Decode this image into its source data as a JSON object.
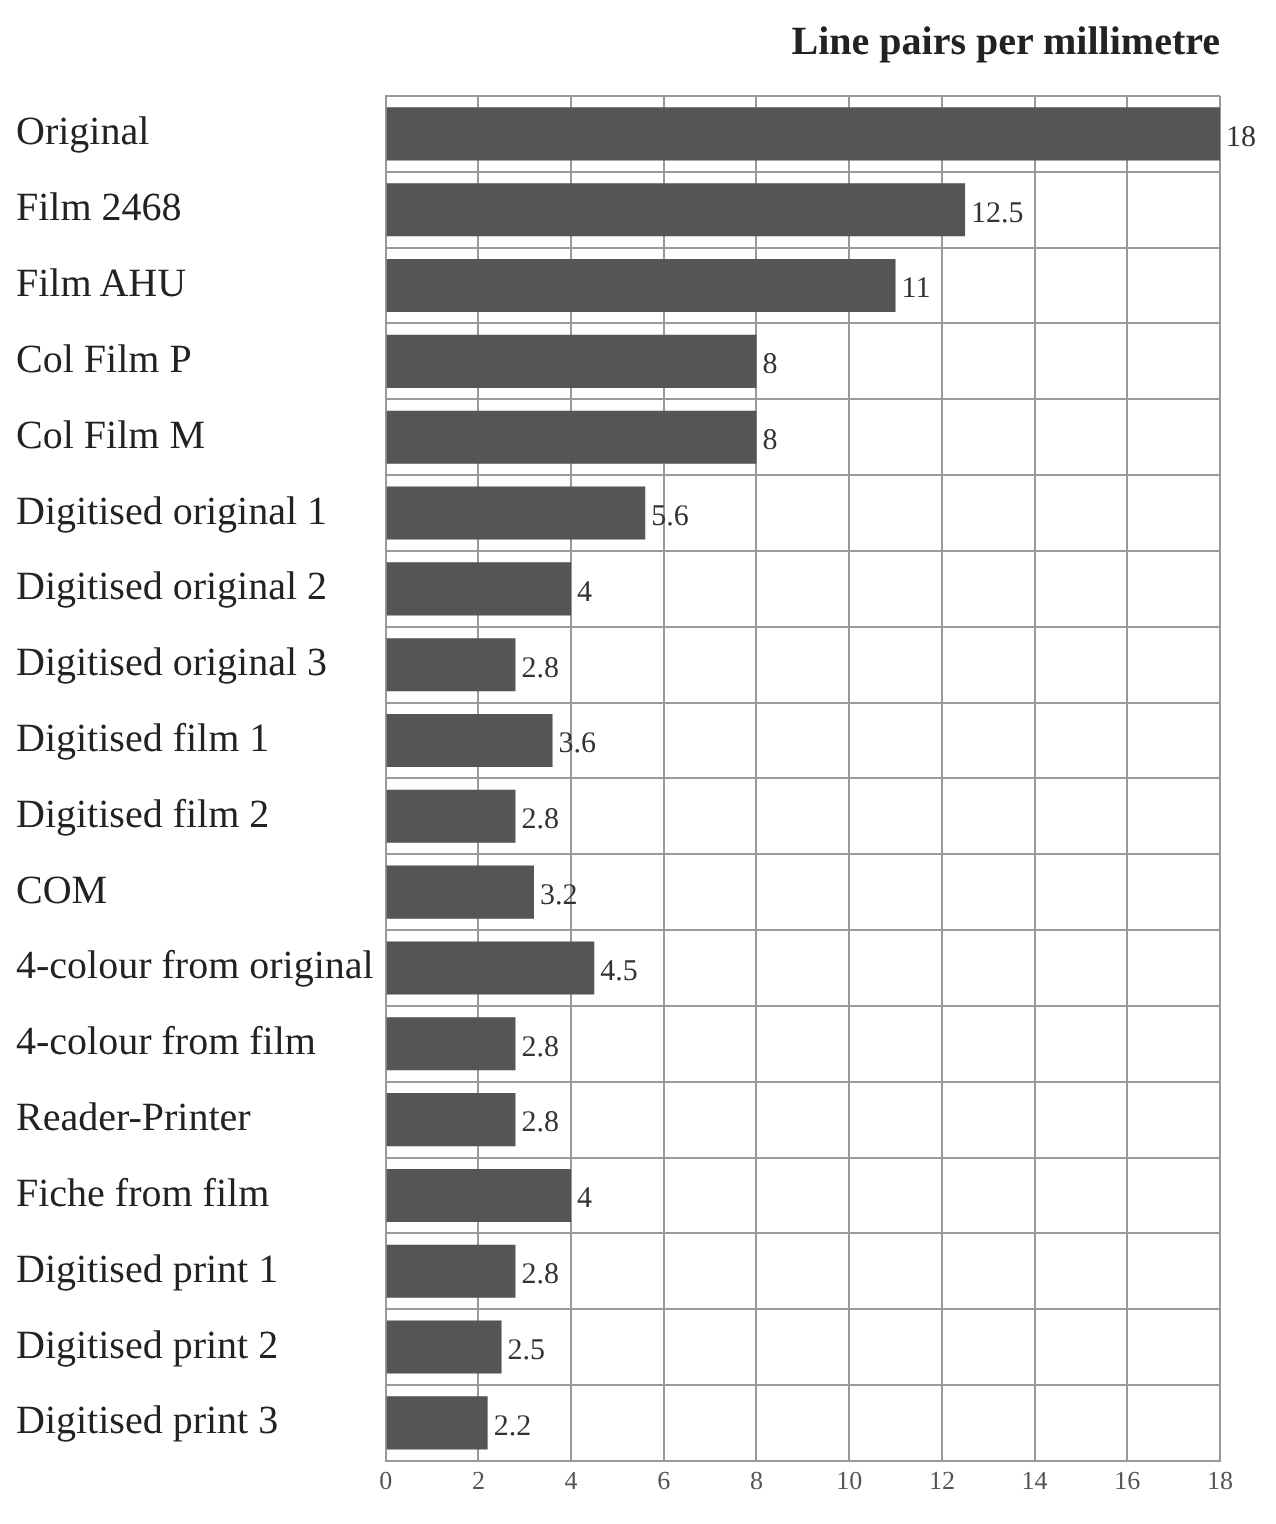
{
  "chart_data": {
    "type": "bar",
    "orientation": "horizontal",
    "title": "Line pairs per millimetre",
    "categories": [
      "Original",
      "Film 2468",
      "Film AHU",
      "Col Film P",
      "Col Film M",
      "Digitised original 1",
      "Digitised original 2",
      "Digitised original 3",
      "Digitised film 1",
      "Digitised film 2",
      "COM",
      "4-colour from original",
      "4-colour from film",
      "Reader-Printer",
      "Fiche from film",
      "Digitised print 1",
      "Digitised print 2",
      "Digitised print 3"
    ],
    "values": [
      18,
      12.5,
      11,
      8,
      8,
      5.6,
      4,
      2.8,
      3.6,
      2.8,
      3.2,
      4.5,
      2.8,
      2.8,
      4,
      2.8,
      2.5,
      2.2
    ],
    "color": "#555555",
    "xlim": [
      0,
      18
    ],
    "xticks": [
      0,
      2,
      4,
      6,
      8,
      10,
      12,
      14,
      16,
      18
    ],
    "grid": true,
    "data_labels": true,
    "legend": false
  }
}
